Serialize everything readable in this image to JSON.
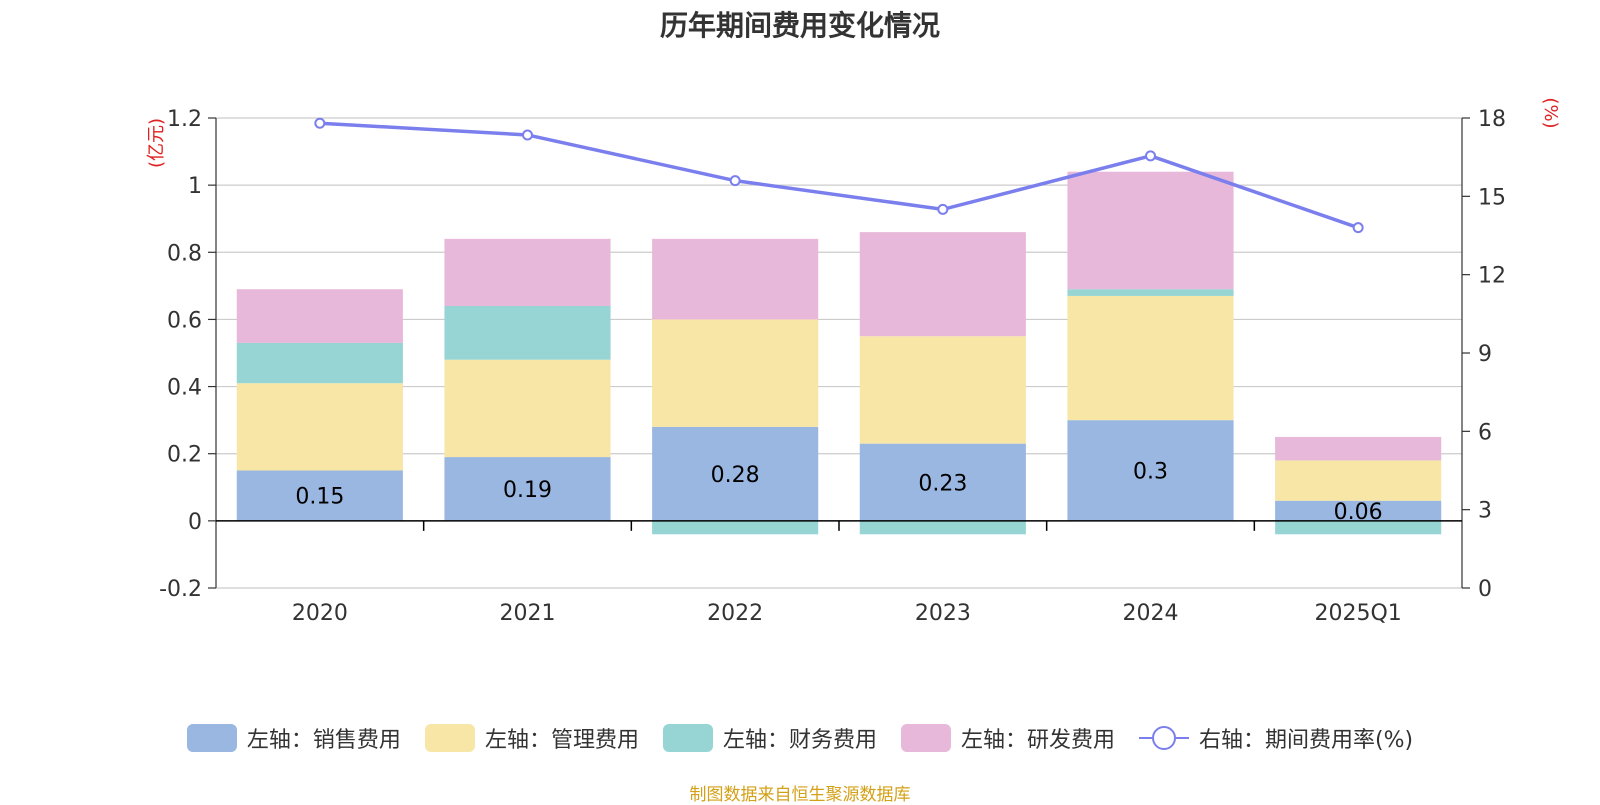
{
  "title": "历年期间费用变化情况",
  "source_note": "制图数据来自恒生聚源数据库",
  "colors": {
    "sales": "#9ab7e1",
    "admin": "#f8e6a6",
    "finance": "#97d4d4",
    "rnd": "#e7b8d9",
    "rate_line": "#7b7fed",
    "axis_unit": "#e02020",
    "grid": "#cccccc",
    "axis_text": "#333333",
    "source_text": "#d4a017"
  },
  "chart_data": {
    "type": "bar",
    "stacked": true,
    "categories": [
      "2020",
      "2021",
      "2022",
      "2023",
      "2024",
      "2025Q1"
    ],
    "left_axis": {
      "unit_label": "(亿元)",
      "ylim": [
        -0.2,
        1.2
      ],
      "ticks": [
        "-0.2",
        "0",
        "0.2",
        "0.4",
        "0.6",
        "0.8",
        "1",
        "1.2"
      ]
    },
    "right_axis": {
      "unit_label": "(%)",
      "ylim": [
        0,
        18
      ],
      "ticks": [
        "0",
        "3",
        "6",
        "9",
        "12",
        "15",
        "18"
      ]
    },
    "series": [
      {
        "name": "左轴：销售费用",
        "key": "sales",
        "axis": "left",
        "values": [
          0.15,
          0.19,
          0.28,
          0.23,
          0.3,
          0.06
        ],
        "labels": [
          "0.15",
          "0.19",
          "0.28",
          "0.23",
          "0.3",
          "0.06"
        ]
      },
      {
        "name": "左轴：管理费用",
        "key": "admin",
        "axis": "left",
        "values": [
          0.26,
          0.29,
          0.32,
          0.32,
          0.37,
          0.12
        ]
      },
      {
        "name": "左轴：财务费用",
        "key": "finance",
        "axis": "left",
        "values": [
          0.12,
          0.16,
          -0.04,
          -0.04,
          0.02,
          -0.04
        ]
      },
      {
        "name": "左轴：研发费用",
        "key": "rnd",
        "axis": "left",
        "values": [
          0.16,
          0.2,
          0.24,
          0.31,
          0.35,
          0.07
        ]
      }
    ],
    "line_series": {
      "name": "右轴：期间费用率(%)",
      "key": "rate_line",
      "axis": "right",
      "type": "line",
      "values": [
        17.8,
        17.35,
        15.6,
        14.5,
        16.55,
        13.8
      ]
    },
    "grid": true,
    "legend_position": "bottom"
  }
}
